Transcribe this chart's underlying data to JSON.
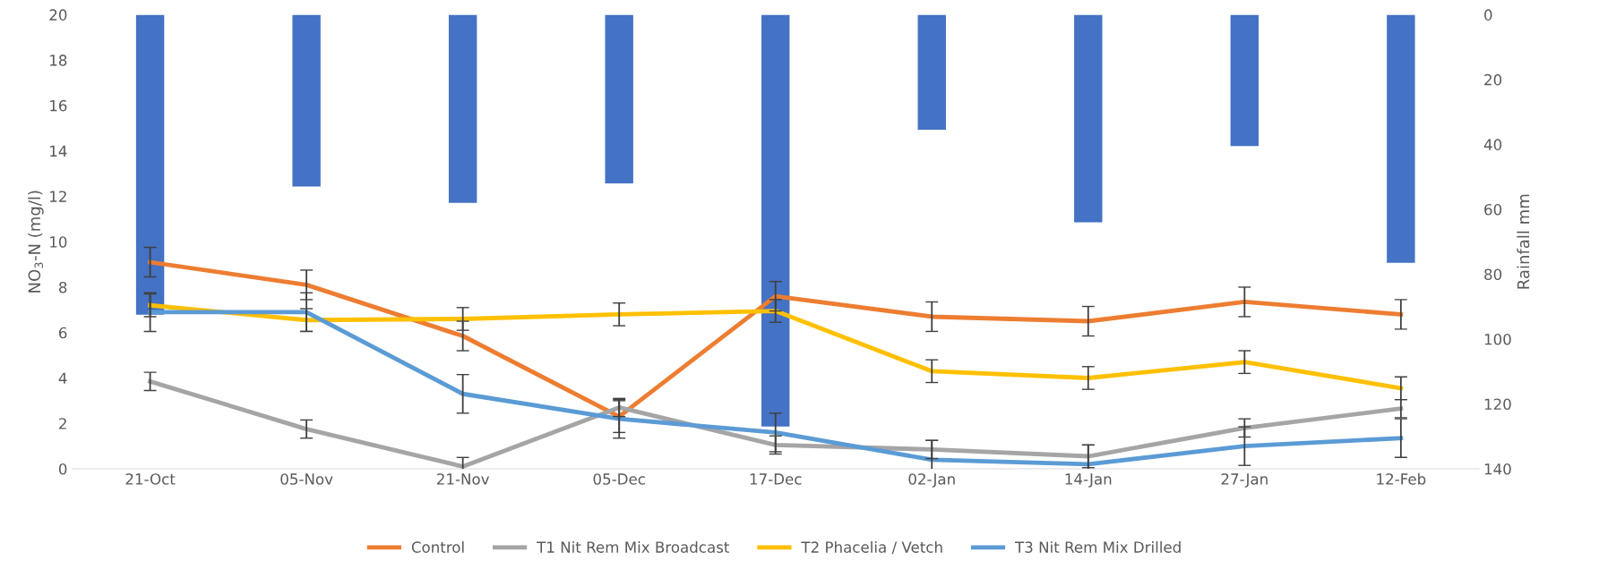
{
  "chart_data": {
    "type": "line",
    "ylabel": "NO$_{3}$-N (mg/l)",
    "y2label": "Rainfall mm",
    "categories": [
      "21-Oct",
      "05-Nov",
      "21-Nov",
      "05-Dec",
      "17-Dec",
      "02-Jan",
      "14-Jan",
      "27-Jan",
      "12-Feb"
    ],
    "ylim": [
      0,
      20
    ],
    "yticks": [
      0,
      2,
      4,
      6,
      8,
      10,
      12,
      14,
      16,
      18,
      20
    ],
    "y2lim": [
      140,
      0
    ],
    "y2ticks": [
      0,
      20,
      40,
      60,
      80,
      100,
      120,
      140
    ],
    "legend": "bottom",
    "grid": false,
    "series": [
      {
        "type": "bar",
        "axis": "y2",
        "color": "#4472c4",
        "values": [
          92.5,
          53,
          58,
          52,
          127,
          35.5,
          64,
          40.5,
          76.5
        ]
      },
      {
        "name": "Control",
        "color": "#ed7d31",
        "values": [
          9.1,
          8.1,
          5.85,
          2.3,
          7.6,
          6.7,
          6.5,
          7.35,
          6.8
        ],
        "errors": [
          0.65,
          0.65,
          0.65,
          0.7,
          0.65,
          0.65,
          0.65,
          0.65,
          0.65
        ]
      },
      {
        "name": "T1 Nit Rem Mix Broadcast",
        "color": "#a5a5a5",
        "values": [
          3.85,
          1.75,
          0.1,
          2.7,
          1.05,
          0.85,
          0.55,
          1.8,
          2.65
        ],
        "errors": [
          0.4,
          0.4,
          0.4,
          0.4,
          0.4,
          0.4,
          0.5,
          0.4,
          0.4
        ]
      },
      {
        "name": "T2 Phacelia / Vetch",
        "color": "#ffc000",
        "values": [
          7.2,
          6.55,
          6.6,
          6.8,
          6.95,
          4.3,
          4.0,
          4.7,
          3.55
        ],
        "errors": [
          0.5,
          0.5,
          0.5,
          0.5,
          0.5,
          0.5,
          0.5,
          0.5,
          0.5
        ]
      },
      {
        "name": "T3 Nit Rem Mix Drilled",
        "color": "#5b9bd5",
        "values": [
          6.9,
          6.9,
          3.3,
          2.2,
          1.6,
          0.4,
          0.2,
          1.0,
          1.35
        ],
        "errors": [
          0.85,
          0.85,
          0.85,
          0.85,
          0.85,
          0.85,
          0.85,
          0.85,
          0.85
        ]
      }
    ]
  }
}
